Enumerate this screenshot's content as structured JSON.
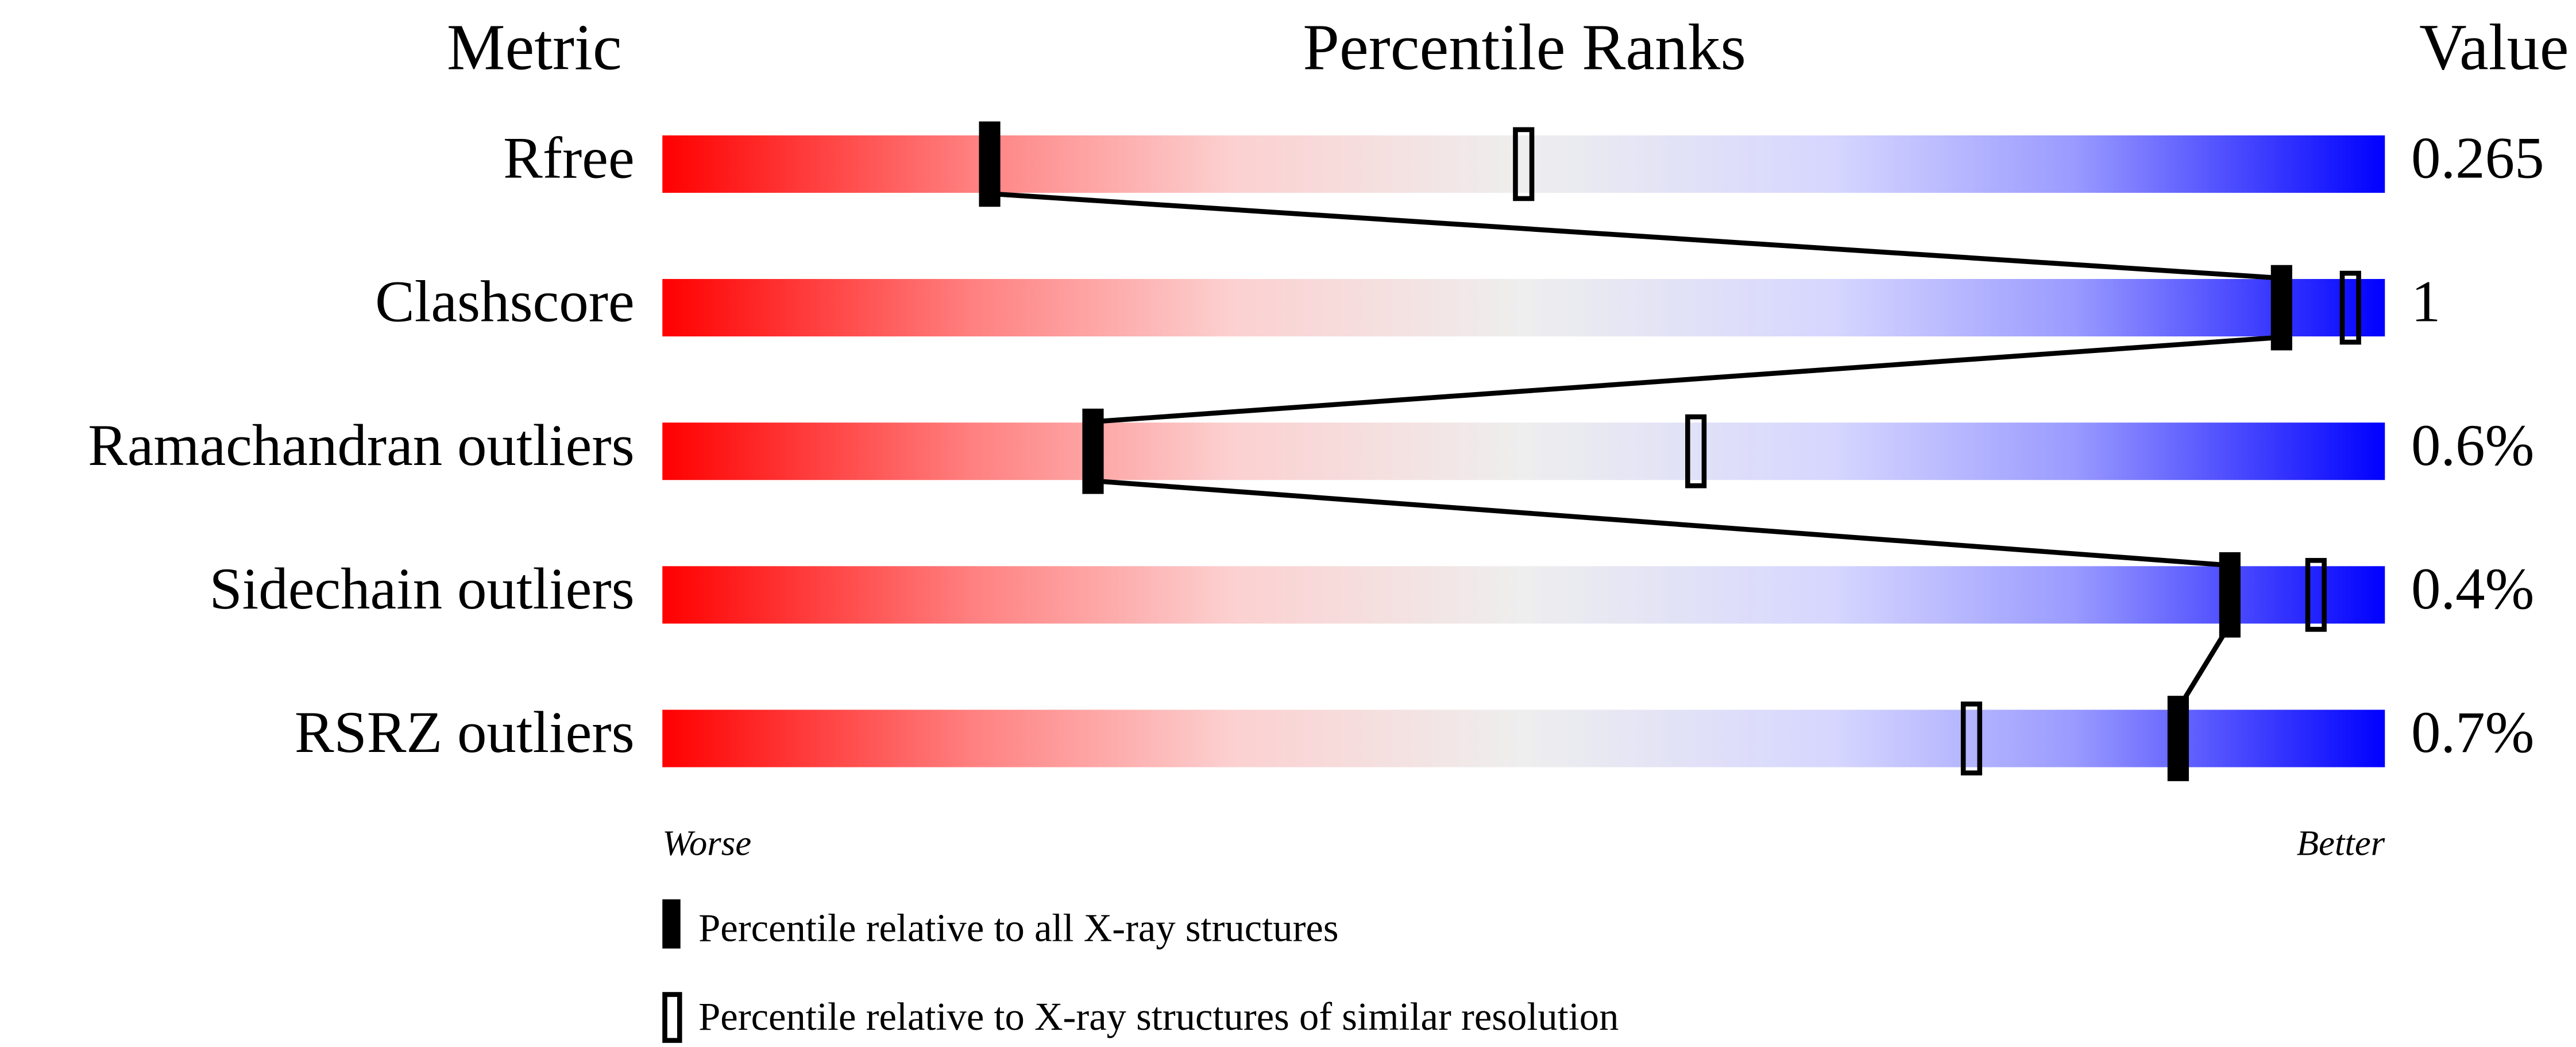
{
  "chart_data": {
    "type": "percentile-ranks",
    "headers": {
      "metric": "Metric",
      "ranks": "Percentile Ranks",
      "value": "Value"
    },
    "xlim": [
      0,
      100
    ],
    "axis_labels": {
      "left": "Worse",
      "right": "Better"
    },
    "metrics": [
      {
        "name": "Rfree",
        "value": "0.265",
        "percentile_all": 19,
        "percentile_similar": 50
      },
      {
        "name": "Clashscore",
        "value": "1",
        "percentile_all": 94,
        "percentile_similar": 98
      },
      {
        "name": "Ramachandran outliers",
        "value": "0.6%",
        "percentile_all": 25,
        "percentile_similar": 60
      },
      {
        "name": "Sidechain outliers",
        "value": "0.4%",
        "percentile_all": 91,
        "percentile_similar": 96
      },
      {
        "name": "RSRZ outliers",
        "value": "0.7%",
        "percentile_all": 88,
        "percentile_similar": 76
      }
    ],
    "legend": [
      {
        "marker": "filled",
        "label": "Percentile relative to all X-ray structures"
      },
      {
        "marker": "open",
        "label": "Percentile relative to X-ray structures of similar resolution"
      }
    ],
    "colors": {
      "worse": "#ff0000",
      "middle": "#eeeeee",
      "better": "#0000ff",
      "marker": "#000000"
    }
  }
}
